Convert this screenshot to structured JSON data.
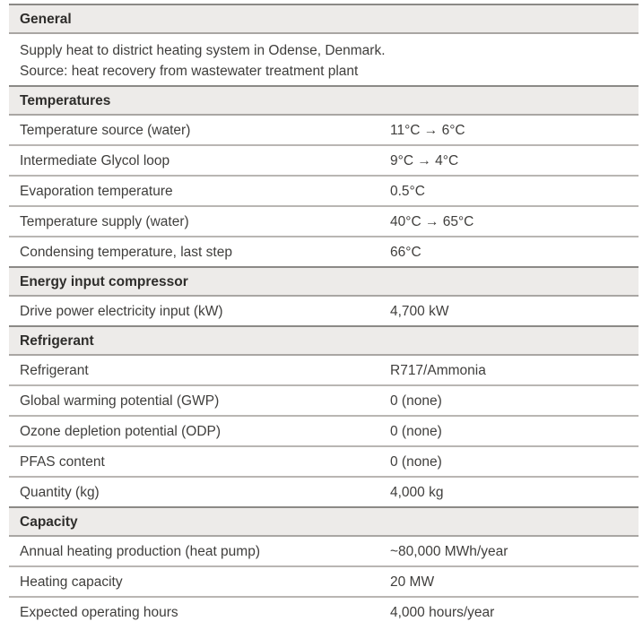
{
  "colors": {
    "header_background": "#edebe9",
    "header_top_border": "#8b8986",
    "header_bottom_border": "#a9a6a3",
    "row_separator": "#b9b6b3",
    "header_text": "#2e2d2b",
    "body_text": "#3f3e3c"
  },
  "table": {
    "sections": [
      {
        "title": "General",
        "description": [
          "Supply heat to district heating system in Odense, Denmark.",
          "Source: heat recovery from wastewater treatment plant"
        ],
        "rows": []
      },
      {
        "title": "Temperatures",
        "rows": [
          {
            "label": "Temperature source (water)",
            "value": "11°C → 6°C"
          },
          {
            "label": "Intermediate Glycol loop",
            "value": "9°C → 4°C"
          },
          {
            "label": "Evaporation temperature",
            "value": "0.5°C"
          },
          {
            "label": "Temperature supply (water)",
            "value": "40°C → 65°C"
          },
          {
            "label": "Condensing temperature, last step",
            "value": "66°C"
          }
        ]
      },
      {
        "title": "Energy input compressor",
        "rows": [
          {
            "label": "Drive power electricity input (kW)",
            "value": "4,700 kW"
          }
        ]
      },
      {
        "title": "Refrigerant",
        "rows": [
          {
            "label": "Refrigerant",
            "value": "R717/Ammonia"
          },
          {
            "label": "Global warming potential (GWP)",
            "value": "0 (none)"
          },
          {
            "label": "Ozone depletion potential (ODP)",
            "value": "0 (none)"
          },
          {
            "label": "PFAS content",
            "value": "0 (none)"
          },
          {
            "label": "Quantity (kg)",
            "value": "4,000 kg"
          }
        ]
      },
      {
        "title": "Capacity",
        "rows": [
          {
            "label": "Annual heating production (heat pump)",
            "value": "~80,000 MWh/year"
          },
          {
            "label": "Heating capacity",
            "value": "20 MW"
          },
          {
            "label": "Expected operating hours",
            "value": "4,000 hours/year"
          }
        ]
      }
    ]
  }
}
